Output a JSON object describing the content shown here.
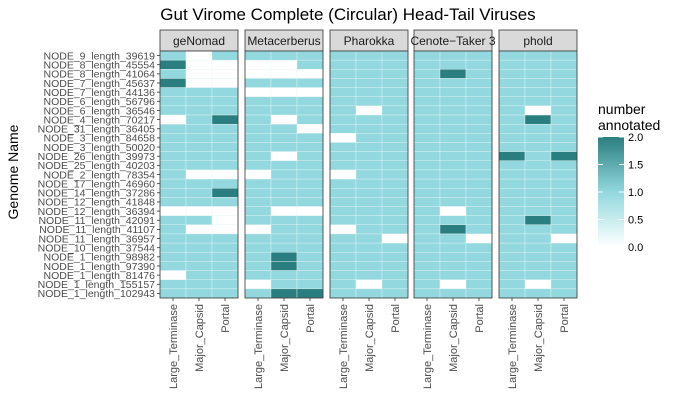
{
  "chart_data": {
    "type": "heatmap",
    "title": "Gut Virome Complete (Circular) Head-Tail Viruses",
    "ylabel": "Genome Name",
    "xlabel": "",
    "facets": [
      "geNomad",
      "Metacerberus",
      "Pharokka",
      "Cenote−Taker 3",
      "phold"
    ],
    "columns": [
      "Large_Terminase",
      "Major_Capsid",
      "Portal"
    ],
    "rows": [
      "NODE_9_length_39619",
      "NODE_8_length_45554",
      "NODE_8_length_41064",
      "NODE_7_length_45637",
      "NODE_7_length_44136",
      "NODE_6_length_56796",
      "NODE_6_length_36546",
      "NODE_4_length_70217",
      "NODE_31_length_36405",
      "NODE_3_length_84658",
      "NODE_3_length_50020",
      "NODE_26_length_39973",
      "NODE_25_length_40203",
      "NODE_2_length_78354",
      "NODE_17_length_46960",
      "NODE_14_length_37286",
      "NODE_12_length_41848",
      "NODE_12_length_36394",
      "NODE_11_length_42091",
      "NODE_11_length_41107",
      "NODE_11_length_36957",
      "NODE_10_length_37544",
      "NODE_1_length_98982",
      "NODE_1_length_97390",
      "NODE_1_length_81476",
      "NODE_1_length_155157",
      "NODE_1_length_102943"
    ],
    "values": {
      "geNomad": [
        [
          1,
          0,
          1
        ],
        [
          2,
          0,
          0
        ],
        [
          1,
          0,
          0
        ],
        [
          2,
          0,
          0
        ],
        [
          1,
          1,
          1
        ],
        [
          1,
          1,
          1
        ],
        [
          1,
          1,
          1
        ],
        [
          0,
          1,
          2
        ],
        [
          1,
          1,
          1
        ],
        [
          1,
          1,
          1
        ],
        [
          1,
          1,
          1
        ],
        [
          1,
          1,
          1
        ],
        [
          1,
          1,
          1
        ],
        [
          1,
          0,
          0
        ],
        [
          1,
          1,
          1
        ],
        [
          1,
          1,
          2
        ],
        [
          1,
          1,
          1
        ],
        [
          0,
          0,
          0
        ],
        [
          1,
          1,
          0
        ],
        [
          1,
          0,
          0
        ],
        [
          1,
          1,
          1
        ],
        [
          1,
          1,
          1
        ],
        [
          1,
          1,
          1
        ],
        [
          1,
          1,
          1
        ],
        [
          0,
          1,
          1
        ],
        [
          1,
          1,
          1
        ],
        [
          1,
          1,
          1
        ]
      ],
      "Metacerberus": [
        [
          1,
          1,
          1
        ],
        [
          0,
          0,
          1
        ],
        [
          0,
          0,
          0
        ],
        [
          1,
          1,
          1
        ],
        [
          0,
          0,
          0
        ],
        [
          1,
          1,
          1
        ],
        [
          1,
          1,
          1
        ],
        [
          1,
          0,
          1
        ],
        [
          1,
          1,
          0
        ],
        [
          1,
          1,
          1
        ],
        [
          1,
          1,
          1
        ],
        [
          1,
          0,
          1
        ],
        [
          1,
          1,
          1
        ],
        [
          0,
          1,
          1
        ],
        [
          1,
          1,
          1
        ],
        [
          1,
          1,
          1
        ],
        [
          1,
          1,
          1
        ],
        [
          1,
          0,
          0
        ],
        [
          1,
          1,
          1
        ],
        [
          0,
          1,
          1
        ],
        [
          1,
          1,
          1
        ],
        [
          1,
          1,
          1
        ],
        [
          1,
          2,
          1
        ],
        [
          1,
          2,
          1
        ],
        [
          1,
          1,
          1
        ],
        [
          0,
          1,
          1
        ],
        [
          1,
          2,
          2
        ]
      ],
      "Pharokka": [
        [
          1,
          1,
          1
        ],
        [
          1,
          1,
          1
        ],
        [
          1,
          1,
          1
        ],
        [
          1,
          1,
          1
        ],
        [
          1,
          1,
          1
        ],
        [
          1,
          1,
          1
        ],
        [
          1,
          0,
          1
        ],
        [
          1,
          1,
          1
        ],
        [
          1,
          1,
          1
        ],
        [
          0,
          1,
          1
        ],
        [
          1,
          1,
          1
        ],
        [
          1,
          1,
          1
        ],
        [
          1,
          1,
          1
        ],
        [
          0,
          1,
          1
        ],
        [
          1,
          1,
          1
        ],
        [
          1,
          1,
          1
        ],
        [
          1,
          1,
          1
        ],
        [
          1,
          1,
          1
        ],
        [
          1,
          1,
          1
        ],
        [
          0,
          1,
          1
        ],
        [
          1,
          1,
          0
        ],
        [
          1,
          1,
          1
        ],
        [
          1,
          1,
          1
        ],
        [
          1,
          1,
          1
        ],
        [
          1,
          1,
          1
        ],
        [
          1,
          0,
          1
        ],
        [
          1,
          1,
          1
        ]
      ],
      "Cenote−Taker 3": [
        [
          1,
          1,
          1
        ],
        [
          1,
          1,
          1
        ],
        [
          1,
          2,
          1
        ],
        [
          1,
          1,
          1
        ],
        [
          1,
          1,
          1
        ],
        [
          1,
          1,
          1
        ],
        [
          1,
          1,
          1
        ],
        [
          1,
          1,
          1
        ],
        [
          1,
          1,
          1
        ],
        [
          1,
          1,
          1
        ],
        [
          1,
          1,
          1
        ],
        [
          1,
          1,
          1
        ],
        [
          1,
          1,
          1
        ],
        [
          1,
          1,
          1
        ],
        [
          1,
          1,
          1
        ],
        [
          1,
          1,
          1
        ],
        [
          1,
          1,
          1
        ],
        [
          1,
          0,
          1
        ],
        [
          1,
          1,
          1
        ],
        [
          1,
          2,
          1
        ],
        [
          1,
          1,
          0
        ],
        [
          1,
          1,
          1
        ],
        [
          1,
          1,
          1
        ],
        [
          1,
          1,
          1
        ],
        [
          1,
          1,
          1
        ],
        [
          1,
          0,
          1
        ],
        [
          1,
          1,
          1
        ]
      ],
      "phold": [
        [
          1,
          1,
          1
        ],
        [
          1,
          1,
          1
        ],
        [
          1,
          1,
          1
        ],
        [
          1,
          1,
          1
        ],
        [
          1,
          1,
          1
        ],
        [
          1,
          1,
          1
        ],
        [
          1,
          0,
          1
        ],
        [
          1,
          2,
          1
        ],
        [
          1,
          1,
          1
        ],
        [
          1,
          1,
          1
        ],
        [
          1,
          1,
          1
        ],
        [
          2,
          1,
          2
        ],
        [
          1,
          1,
          1
        ],
        [
          1,
          1,
          1
        ],
        [
          1,
          1,
          1
        ],
        [
          1,
          1,
          1
        ],
        [
          1,
          1,
          1
        ],
        [
          1,
          1,
          1
        ],
        [
          1,
          2,
          1
        ],
        [
          1,
          1,
          1
        ],
        [
          1,
          1,
          0
        ],
        [
          1,
          1,
          1
        ],
        [
          1,
          1,
          1
        ],
        [
          1,
          1,
          1
        ],
        [
          1,
          1,
          1
        ],
        [
          1,
          0,
          1
        ],
        [
          1,
          1,
          1
        ]
      ]
    },
    "legend": {
      "title_line1": "number",
      "title_line2": "annotated",
      "ticks": [
        "2.0",
        "1.5",
        "1.0",
        "0.5",
        "0.0"
      ],
      "min": 0,
      "max": 2,
      "placement": "right"
    },
    "colors": {
      "low": "#ffffff",
      "mid": "#92d8de",
      "high": "#2b7e80",
      "panel_bg": "#ebebeb",
      "strip_bg": "#d9d9d9"
    }
  }
}
